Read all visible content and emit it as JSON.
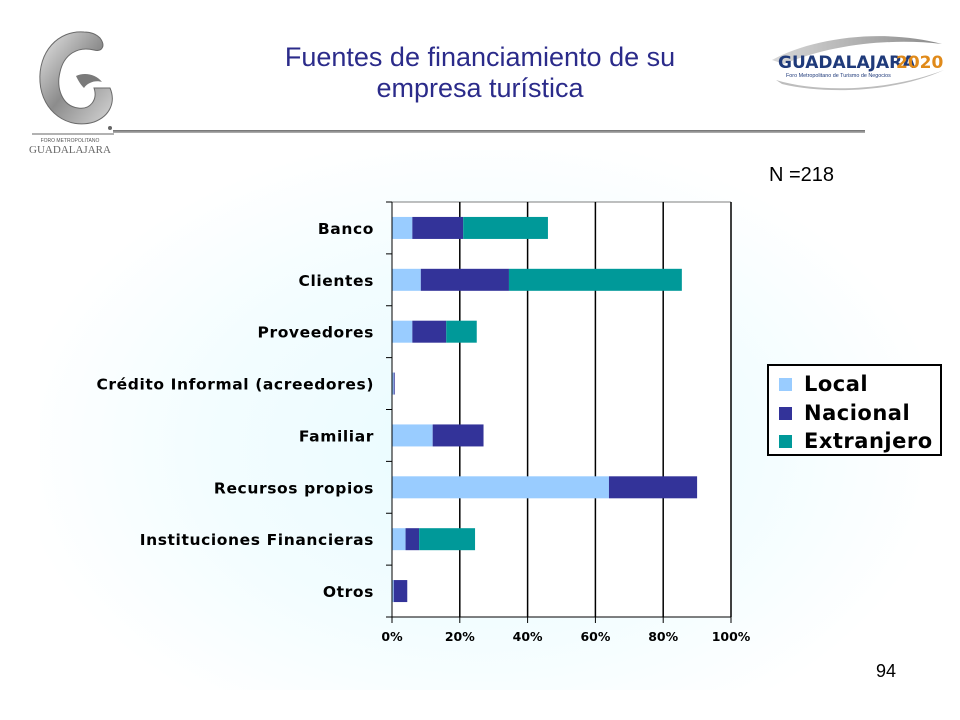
{
  "slide": {
    "title_line1": "Fuentes de financiamiento de su",
    "title_line2": "empresa turística",
    "sample_size": "N =218",
    "page_number": "94"
  },
  "logos": {
    "left": {
      "small_text": "FORO METROPOLITANO",
      "name": "GUADALAJARA"
    },
    "right": {
      "name": "GUADALAJARA",
      "year": "2020",
      "subtitle": "Foro Metropolitano de Turismo de Negocios"
    }
  },
  "legend": {
    "items": [
      {
        "label": "Local",
        "color": "#99ccff"
      },
      {
        "label": "Nacional",
        "color": "#333399"
      },
      {
        "label": "Extranjero",
        "color": "#009999"
      }
    ]
  },
  "chart_data": {
    "type": "bar",
    "orientation": "horizontal",
    "stacked": true,
    "categories": [
      "Banco",
      "Clientes",
      "Proveedores",
      "Crédito Informal (acreedores)",
      "Familiar",
      "Recursos propios",
      "Instituciones Financieras",
      "Otros"
    ],
    "series": [
      {
        "name": "Local",
        "color": "#99ccff",
        "values": [
          6,
          8.5,
          6,
          0.5,
          12,
          64,
          4,
          0.5
        ]
      },
      {
        "name": "Nacional",
        "color": "#333399",
        "values": [
          15,
          26,
          10,
          0.3,
          15,
          26,
          4,
          4
        ]
      },
      {
        "name": "Extranjero",
        "color": "#009999",
        "values": [
          25,
          51,
          9,
          0,
          0,
          0,
          16.5,
          0
        ]
      }
    ],
    "x_ticks": [
      "0%",
      "20%",
      "40%",
      "60%",
      "80%",
      "100%"
    ],
    "xlim": [
      0,
      100
    ],
    "grid": true,
    "legend_position": "right"
  }
}
